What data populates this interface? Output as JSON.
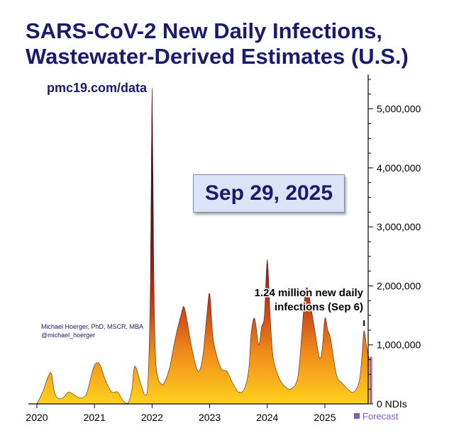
{
  "chart_data": {
    "type": "area",
    "title_lines": [
      "SARS-CoV-2 New Daily Infections,",
      "Wastewater-Derived Estimates (U.S.)"
    ],
    "source": "pmc19.com/data",
    "date_label": "Sep 29, 2025",
    "credit_lines": [
      "Michael Hoerger, PhD, MSCR, MBA",
      "@michael_hoerger"
    ],
    "annotation_lines": [
      "1.24 million new daily",
      "infections (Sep 6)"
    ],
    "annotation_point": {
      "x": 2025.68,
      "y": 1240000
    },
    "legend": {
      "label": "Forecast",
      "color": "#7b5bd6"
    },
    "y_unit_label": "NDIs",
    "ylim": [
      0,
      5500000
    ],
    "xlim": [
      2020.0,
      2025.85
    ],
    "yticks": [
      0,
      1000000,
      2000000,
      3000000,
      4000000,
      5000000
    ],
    "ytick_labels": [
      "0",
      "1,000,000",
      "2,000,000",
      "3,000,000",
      "4,000,000",
      "5,000,000"
    ],
    "xticks": [
      2020,
      2021,
      2022,
      2023,
      2024,
      2025
    ],
    "xtick_labels": [
      "2020",
      "2021",
      "2022",
      "2023",
      "2024",
      "2025"
    ],
    "colors": {
      "title": "#1a1a6e",
      "low": "#ffc21a",
      "mid": "#d9531e",
      "high": "#3a0a1a",
      "forecast": "#7b5bd6"
    },
    "x": [
      2020.0,
      2020.1,
      2020.19,
      2020.25,
      2020.3,
      2020.36,
      2020.45,
      2020.55,
      2020.65,
      2020.75,
      2020.85,
      2020.9,
      2020.95,
      2021.0,
      2021.05,
      2021.1,
      2021.2,
      2021.3,
      2021.4,
      2021.5,
      2021.58,
      2021.65,
      2021.7,
      2021.8,
      2021.88,
      2021.93,
      2021.97,
      2022.0,
      2022.03,
      2022.06,
      2022.1,
      2022.15,
      2022.2,
      2022.3,
      2022.4,
      2022.5,
      2022.55,
      2022.6,
      2022.7,
      2022.8,
      2022.88,
      2022.95,
      2023.0,
      2023.05,
      2023.1,
      2023.2,
      2023.3,
      2023.4,
      2023.5,
      2023.6,
      2023.68,
      2023.72,
      2023.78,
      2023.85,
      2023.9,
      2023.95,
      2024.0,
      2024.05,
      2024.1,
      2024.2,
      2024.3,
      2024.4,
      2024.5,
      2024.55,
      2024.6,
      2024.65,
      2024.7,
      2024.8,
      2024.9,
      2024.95,
      2025.0,
      2025.05,
      2025.1,
      2025.2,
      2025.3,
      2025.4,
      2025.5,
      2025.6,
      2025.65,
      2025.68,
      2025.72,
      2025.76,
      2025.8
    ],
    "values": [
      0,
      200000,
      450000,
      520000,
      220000,
      100000,
      100000,
      200000,
      150000,
      100000,
      150000,
      300000,
      500000,
      650000,
      700000,
      650000,
      380000,
      200000,
      200000,
      50000,
      10000,
      250000,
      640000,
      350000,
      150000,
      400000,
      2000000,
      5350000,
      2200000,
      800000,
      450000,
      350000,
      340000,
      600000,
      1100000,
      1500000,
      1650000,
      1450000,
      900000,
      550000,
      800000,
      1500000,
      1870000,
      1200000,
      900000,
      600000,
      550000,
      350000,
      200000,
      250000,
      600000,
      1200000,
      1450000,
      1000000,
      1300000,
      1500000,
      2450000,
      1500000,
      800000,
      450000,
      300000,
      250000,
      350000,
      600000,
      1200000,
      1800000,
      1950000,
      1400000,
      800000,
      900000,
      1450000,
      1250000,
      1100000,
      500000,
      350000,
      250000,
      200000,
      400000,
      900000,
      1240000,
      1000000,
      800000,
      750000
    ]
  }
}
